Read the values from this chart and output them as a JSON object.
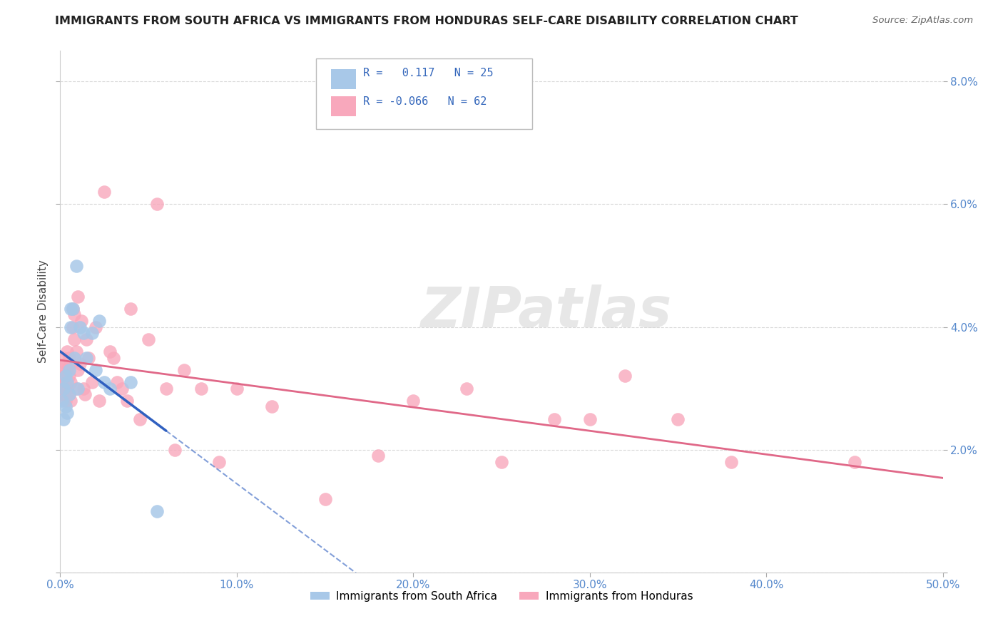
{
  "title": "IMMIGRANTS FROM SOUTH AFRICA VS IMMIGRANTS FROM HONDURAS SELF-CARE DISABILITY CORRELATION CHART",
  "source": "Source: ZipAtlas.com",
  "ylabel": "Self-Care Disability",
  "xlim": [
    0.0,
    0.5
  ],
  "ylim": [
    0.0,
    0.085
  ],
  "xticks": [
    0.0,
    0.1,
    0.2,
    0.3,
    0.4,
    0.5
  ],
  "yticks": [
    0.0,
    0.02,
    0.04,
    0.06,
    0.08
  ],
  "xticklabels": [
    "0.0%",
    "10.0%",
    "20.0%",
    "30.0%",
    "40.0%",
    "50.0%"
  ],
  "yticklabels_right": [
    "",
    "2.0%",
    "4.0%",
    "6.0%",
    "8.0%"
  ],
  "legend_label1": "Immigrants from South Africa",
  "legend_label2": "Immigrants from Honduras",
  "R1": 0.117,
  "N1": 25,
  "R2": -0.066,
  "N2": 62,
  "color1": "#a8c8e8",
  "color2": "#f8a8bc",
  "line_color1": "#3060c0",
  "line_color2": "#e06888",
  "south_africa_x": [
    0.001,
    0.002,
    0.002,
    0.003,
    0.003,
    0.004,
    0.004,
    0.005,
    0.005,
    0.006,
    0.006,
    0.007,
    0.008,
    0.009,
    0.01,
    0.011,
    0.013,
    0.015,
    0.018,
    0.02,
    0.022,
    0.025,
    0.028,
    0.04,
    0.055
  ],
  "south_africa_y": [
    0.028,
    0.025,
    0.03,
    0.027,
    0.032,
    0.031,
    0.026,
    0.029,
    0.033,
    0.043,
    0.04,
    0.043,
    0.035,
    0.05,
    0.03,
    0.04,
    0.039,
    0.035,
    0.039,
    0.033,
    0.041,
    0.031,
    0.03,
    0.031,
    0.01
  ],
  "honduras_x": [
    0.001,
    0.001,
    0.002,
    0.002,
    0.002,
    0.003,
    0.003,
    0.003,
    0.004,
    0.004,
    0.004,
    0.005,
    0.005,
    0.005,
    0.006,
    0.006,
    0.006,
    0.007,
    0.007,
    0.008,
    0.008,
    0.009,
    0.009,
    0.01,
    0.01,
    0.011,
    0.012,
    0.013,
    0.014,
    0.015,
    0.016,
    0.018,
    0.02,
    0.022,
    0.025,
    0.028,
    0.03,
    0.032,
    0.035,
    0.038,
    0.04,
    0.045,
    0.05,
    0.055,
    0.06,
    0.065,
    0.07,
    0.08,
    0.09,
    0.1,
    0.12,
    0.15,
    0.18,
    0.2,
    0.23,
    0.25,
    0.28,
    0.3,
    0.32,
    0.35,
    0.38,
    0.45
  ],
  "honduras_y": [
    0.03,
    0.033,
    0.029,
    0.032,
    0.035,
    0.028,
    0.031,
    0.034,
    0.03,
    0.033,
    0.036,
    0.029,
    0.032,
    0.035,
    0.028,
    0.031,
    0.034,
    0.04,
    0.043,
    0.038,
    0.042,
    0.03,
    0.036,
    0.045,
    0.033,
    0.034,
    0.041,
    0.03,
    0.029,
    0.038,
    0.035,
    0.031,
    0.04,
    0.028,
    0.062,
    0.036,
    0.035,
    0.031,
    0.03,
    0.028,
    0.043,
    0.025,
    0.038,
    0.06,
    0.03,
    0.02,
    0.033,
    0.03,
    0.018,
    0.03,
    0.027,
    0.012,
    0.019,
    0.028,
    0.03,
    0.018,
    0.025,
    0.025,
    0.032,
    0.025,
    0.018,
    0.018
  ],
  "watermark_text": "ZIPatlas",
  "background_color": "#ffffff",
  "grid_color": "#d0d0d0"
}
